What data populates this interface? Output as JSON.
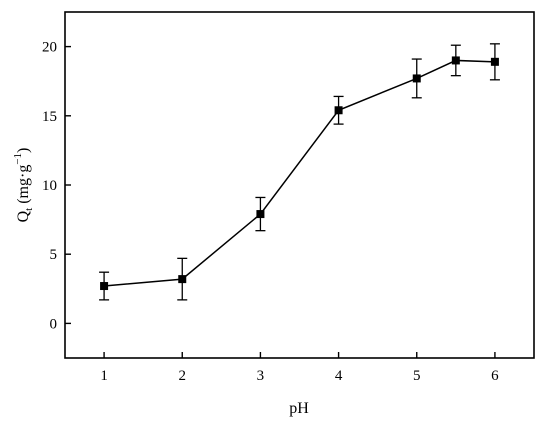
{
  "chart_data": {
    "type": "line",
    "xlabel": "pH",
    "ylabel_main": "Q",
    "ylabel_sub": "t",
    "ylabel_units": " (mg·g",
    "ylabel_sup": "−1",
    "ylabel_close": ")",
    "xlim": [
      0.5,
      6.5
    ],
    "ylim": [
      -2.5,
      22.5
    ],
    "xticks": [
      1,
      2,
      3,
      4,
      5,
      6
    ],
    "yticks": [
      0,
      5,
      10,
      15,
      20
    ],
    "grid": false,
    "series": [
      {
        "marker": "square",
        "color": "#000000",
        "x": [
          1,
          2,
          3,
          4,
          5,
          5.5,
          6
        ],
        "y": [
          2.7,
          3.2,
          7.9,
          15.4,
          17.7,
          19.0,
          18.9
        ],
        "error": [
          1.0,
          1.5,
          1.2,
          1.0,
          1.4,
          1.1,
          1.3
        ]
      }
    ]
  }
}
